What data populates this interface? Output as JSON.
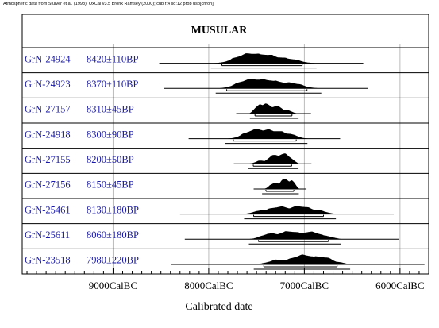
{
  "header": {
    "note": "Atmospheric data from Stuiver et al. (1998); OxCal v3.5 Bronk Ramsey (2000); cub r:4 sd:12 prob usp[chron]"
  },
  "chart_data": {
    "type": "range",
    "title": "MUSULAR",
    "xlabel": "Calibrated date",
    "xlim_calBC": [
      9950,
      5700
    ],
    "x_ticks": [
      {
        "value": 9000,
        "label": "9000CalBC"
      },
      {
        "value": 8000,
        "label": "8000CalBC"
      },
      {
        "value": 7000,
        "label": "7000CalBC"
      },
      {
        "value": 6000,
        "label": "6000CalBC"
      }
    ],
    "grid": "vertical at ticks",
    "samples": [
      {
        "id": "GrN-24924",
        "date": "8420±110BP",
        "bp": 8420,
        "err": 110,
        "range": [
          8000,
          6850
        ],
        "peaks": [
          [
            7550,
            0.95
          ],
          [
            7420,
            0.85
          ],
          [
            7300,
            0.6
          ],
          [
            7200,
            0.45
          ]
        ],
        "spread": 0.45
      },
      {
        "id": "GrN-24923",
        "date": "8370±110BP",
        "bp": 8370,
        "err": 110,
        "range": [
          7950,
          6800
        ],
        "peaks": [
          [
            7530,
            0.9
          ],
          [
            7420,
            0.85
          ],
          [
            7320,
            0.7
          ],
          [
            7180,
            0.55
          ]
        ],
        "spread": 0.45
      },
      {
        "id": "GrN-27157",
        "date": "8310±45BP",
        "bp": 8310,
        "err": 45,
        "range": [
          7580,
          7050
        ],
        "peaks": [
          [
            7480,
            0.95
          ],
          [
            7400,
            0.9
          ],
          [
            7300,
            0.7
          ],
          [
            7200,
            0.35
          ]
        ],
        "spread": 0.25
      },
      {
        "id": "GrN-24918",
        "date": "8300±90BP",
        "bp": 8300,
        "err": 90,
        "range": [
          7850,
          6950
        ],
        "peaks": [
          [
            7490,
            0.9
          ],
          [
            7390,
            0.85
          ],
          [
            7300,
            0.75
          ],
          [
            7180,
            0.5
          ]
        ],
        "spread": 0.4
      },
      {
        "id": "GrN-27155",
        "date": "8200±50BP",
        "bp": 8200,
        "err": 50,
        "range": [
          7600,
          7050
        ],
        "peaks": [
          [
            7450,
            0.3
          ],
          [
            7300,
            0.85
          ],
          [
            7220,
            0.95
          ],
          [
            7150,
            0.75
          ]
        ],
        "spread": 0.25
      },
      {
        "id": "GrN-27156",
        "date": "8150±45BP",
        "bp": 8150,
        "err": 45,
        "range": [
          7450,
          7050
        ],
        "peaks": [
          [
            7300,
            0.6
          ],
          [
            7200,
            0.95
          ],
          [
            7120,
            0.9
          ]
        ],
        "spread": 0.2
      },
      {
        "id": "GrN-25461",
        "date": "8130±180BP",
        "bp": 8130,
        "err": 180,
        "range": [
          7650,
          6650
        ],
        "peaks": [
          [
            7450,
            0.4
          ],
          [
            7250,
            0.7
          ],
          [
            7050,
            0.75
          ],
          [
            6850,
            0.4
          ]
        ],
        "spread": 0.65
      },
      {
        "id": "GrN-25611",
        "date": "8060±180BP",
        "bp": 8060,
        "err": 180,
        "range": [
          7600,
          6600
        ],
        "peaks": [
          [
            7350,
            0.55
          ],
          [
            7150,
            0.75
          ],
          [
            6950,
            0.7
          ],
          [
            6750,
            0.4
          ]
        ],
        "spread": 0.65
      },
      {
        "id": "GrN-23518",
        "date": "7980±220BP",
        "bp": 7980,
        "err": 220,
        "range": [
          7550,
          6500
        ],
        "peaks": [
          [
            7250,
            0.45
          ],
          [
            7000,
            0.9
          ],
          [
            6850,
            0.75
          ],
          [
            6650,
            0.35
          ]
        ],
        "spread": 0.8
      }
    ]
  }
}
